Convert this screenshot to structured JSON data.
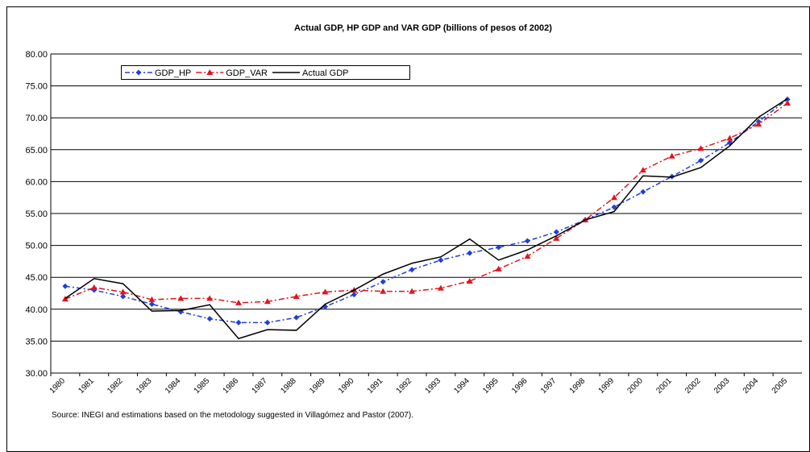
{
  "chart_data": {
    "type": "line",
    "title": "Actual GDP, HP GDP and VAR GDP (billions of pesos of 2002)",
    "source": "Source: INEGI and estimations based on the metodology suggested in Villagómez and Pastor (2007).",
    "categories": [
      "1980",
      "1981",
      "1982",
      "1983",
      "1984",
      "1985",
      "1986",
      "1987",
      "1988",
      "1989",
      "1990",
      "1991",
      "1992",
      "1993",
      "1994",
      "1995",
      "1996",
      "1997",
      "1998",
      "1999",
      "2000",
      "2001",
      "2002",
      "2003",
      "2004",
      "2005"
    ],
    "series": [
      {
        "name": "GDP_HP",
        "color": "#1f3fd9",
        "dash": "6 3 2 3",
        "marker": "diamond",
        "values": [
          43.6,
          43.0,
          42.0,
          40.8,
          39.6,
          38.5,
          37.9,
          37.9,
          38.7,
          40.4,
          42.3,
          44.3,
          46.2,
          47.7,
          48.8,
          49.7,
          50.7,
          52.1,
          54.0,
          56.0,
          58.4,
          60.8,
          63.3,
          66.1,
          69.4,
          72.9
        ]
      },
      {
        "name": "GDP_VAR",
        "color": "#e0141e",
        "dash": "7 3 2 3",
        "marker": "triangle",
        "values": [
          41.6,
          43.4,
          42.7,
          41.5,
          41.7,
          41.7,
          41.0,
          41.2,
          42.0,
          42.7,
          43.0,
          42.8,
          42.8,
          43.3,
          44.4,
          46.3,
          48.3,
          51.1,
          54.0,
          57.5,
          61.8,
          64.0,
          65.2,
          66.8,
          69.0,
          72.3
        ]
      },
      {
        "name": "Actual GDP",
        "color": "#000000",
        "dash": "none",
        "marker": "none",
        "values": [
          41.7,
          44.8,
          44.0,
          39.7,
          39.8,
          40.7,
          35.4,
          36.8,
          36.7,
          40.8,
          43.0,
          45.5,
          47.2,
          48.2,
          51.0,
          47.7,
          49.3,
          51.5,
          54.0,
          55.3,
          60.9,
          60.7,
          62.2,
          65.6,
          70.1,
          73.0
        ]
      }
    ],
    "ylim": [
      30,
      80
    ],
    "yticks": [
      {
        "value": 30,
        "label": "30.00"
      },
      {
        "value": 35,
        "label": "35.00"
      },
      {
        "value": 40,
        "label": "40.00"
      },
      {
        "value": 45,
        "label": "45.00"
      },
      {
        "value": 50,
        "label": "50.00"
      },
      {
        "value": 55,
        "label": "55.00"
      },
      {
        "value": 60,
        "label": "60.00"
      },
      {
        "value": 65,
        "label": "65.00"
      },
      {
        "value": 70,
        "label": "70.00"
      },
      {
        "value": 75,
        "label": "75.00"
      },
      {
        "value": 80,
        "label": "80.00"
      }
    ],
    "grid": true
  }
}
